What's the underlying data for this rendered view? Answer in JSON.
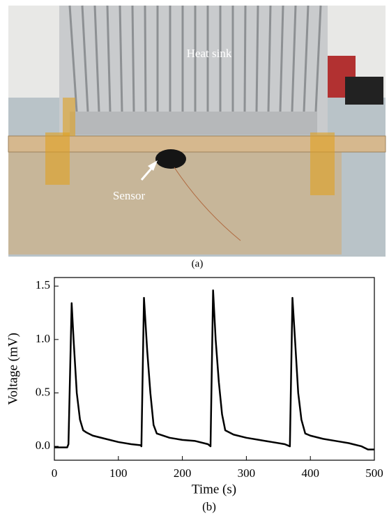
{
  "figure": {
    "photo_labels": {
      "heat_sink": "Heat sink",
      "sensor": "Sensor"
    },
    "caption_a": "(a)",
    "caption_b": "(b)"
  },
  "chart_data": {
    "type": "line",
    "x_label": "Time (s)",
    "y_label": "Voltage (mV)",
    "x": [
      0,
      20,
      22,
      27,
      30,
      35,
      40,
      45,
      50,
      60,
      80,
      100,
      120,
      135,
      136,
      140,
      145,
      150,
      155,
      160,
      180,
      200,
      220,
      240,
      244,
      248,
      252,
      257,
      262,
      267,
      280,
      300,
      320,
      340,
      360,
      368,
      372,
      376,
      381,
      386,
      392,
      400,
      420,
      440,
      460,
      480,
      490,
      500
    ],
    "series": [
      {
        "name": "Voltage",
        "color": "#000000",
        "values": [
          -0.01,
          -0.01,
          0.02,
          1.34,
          1.0,
          0.5,
          0.25,
          0.15,
          0.13,
          0.1,
          0.07,
          0.04,
          0.02,
          0.01,
          0.0,
          1.39,
          0.9,
          0.5,
          0.2,
          0.12,
          0.08,
          0.06,
          0.05,
          0.02,
          0.0,
          1.46,
          1.0,
          0.6,
          0.3,
          0.15,
          0.11,
          0.08,
          0.06,
          0.04,
          0.02,
          0.0,
          1.39,
          1.0,
          0.5,
          0.25,
          0.12,
          0.1,
          0.07,
          0.05,
          0.03,
          0.0,
          -0.03,
          -0.03
        ]
      }
    ],
    "xlim": [
      0,
      500
    ],
    "xticks": [
      0,
      100,
      200,
      300,
      400,
      500
    ],
    "ylim": [
      -0.13,
      1.58
    ],
    "yticks": [
      {
        "value": 0,
        "label": "0.0"
      },
      0.5,
      {
        "value": 1,
        "label": "1.0"
      },
      1.5
    ],
    "grid": false
  }
}
